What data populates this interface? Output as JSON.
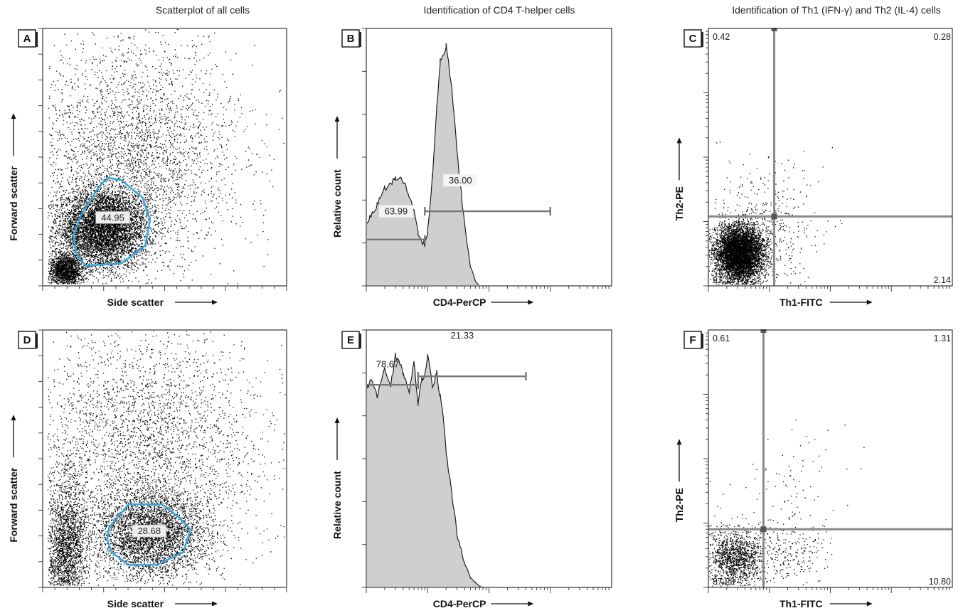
{
  "column_titles": [
    "Scatterplot of all cells",
    "Identification of CD4 T-helper cells",
    "Identification of Th1 (IFN-γ) and Th2 (IL-4) cells"
  ],
  "chart_data": [
    {
      "panel": "A",
      "type": "scatter",
      "title": "Scatterplot of all cells",
      "xlabel": "Side scatter",
      "ylabel": "Forward scatter",
      "xlim": [
        0,
        1023
      ],
      "ylim": [
        0,
        1023
      ],
      "ticks": "unlabeled",
      "gate": {
        "shape": "polygon",
        "color": "#3aa6d8",
        "label": "44.95",
        "polygon": [
          [
            160,
            280
          ],
          [
            230,
            385
          ],
          [
            270,
            430
          ],
          [
            330,
            420
          ],
          [
            420,
            350
          ],
          [
            450,
            260
          ],
          [
            430,
            160
          ],
          [
            330,
            90
          ],
          [
            180,
            80
          ],
          [
            140,
            130
          ],
          [
            130,
            200
          ]
        ]
      },
      "populations": [
        {
          "center": [
            250,
            230
          ],
          "spread": [
            95,
            80
          ],
          "weight": 0.55
        },
        {
          "center": [
            95,
            60
          ],
          "spread": [
            35,
            35
          ],
          "weight": 0.15
        },
        {
          "center": [
            380,
            520
          ],
          "spread": [
            220,
            230
          ],
          "weight": 0.3
        }
      ]
    },
    {
      "panel": "B",
      "type": "area",
      "title": "Identification of CD4 T-helper cells",
      "xlabel": "CD4-PerCP",
      "ylabel": "Relative count",
      "xscale": "log",
      "xlim": [
        1,
        10000
      ],
      "ylim": [
        0,
        1
      ],
      "x": [
        1,
        1.5,
        2,
        3,
        4,
        5,
        6,
        7,
        8,
        9,
        10,
        12,
        14,
        16,
        20,
        25,
        30,
        40,
        50,
        60,
        70,
        80,
        100,
        150,
        200,
        500,
        1000,
        10000
      ],
      "values": [
        0.25,
        0.33,
        0.4,
        0.44,
        0.43,
        0.37,
        0.3,
        0.22,
        0.18,
        0.17,
        0.22,
        0.45,
        0.72,
        0.92,
        0.98,
        0.8,
        0.55,
        0.25,
        0.08,
        0.02,
        0,
        0,
        0,
        0,
        0,
        0,
        0,
        0
      ],
      "gates": [
        {
          "label": "63.99",
          "range": [
            1,
            9
          ]
        },
        {
          "label": "36.00",
          "range": [
            9,
            1000
          ]
        }
      ]
    },
    {
      "panel": "C",
      "type": "scatter",
      "title": "Identification of Th1 (IFN-γ) and Th2 (IL-4) cells",
      "xlabel": "Th1-FITC",
      "ylabel": "Th2-PE",
      "xscale": "log",
      "yscale": "log",
      "xlim": [
        1,
        10000
      ],
      "ylim": [
        1,
        10000
      ],
      "quadrant": {
        "x": 12,
        "y": 12
      },
      "quadrant_values": {
        "upper_left": "0.42",
        "upper_right": "0.28",
        "lower_left": "97.16",
        "lower_right": "2.14"
      },
      "populations": [
        {
          "center": [
            3.2,
            3.2
          ],
          "spread": [
            0.2,
            0.22
          ],
          "weight": 0.93
        },
        {
          "center": [
            8,
            8
          ],
          "spread": [
            0.45,
            0.5
          ],
          "weight": 0.07
        }
      ]
    },
    {
      "panel": "D",
      "type": "scatter",
      "xlabel": "Side scatter",
      "ylabel": "Forward scatter",
      "xlim": [
        0,
        1023
      ],
      "ylim": [
        0,
        1023
      ],
      "ticks": "unlabeled",
      "gate": {
        "shape": "polygon",
        "color": "#3aa6d8",
        "label": "28.68",
        "polygon": [
          [
            280,
            240
          ],
          [
            360,
            330
          ],
          [
            500,
            330
          ],
          [
            570,
            280
          ],
          [
            620,
            230
          ],
          [
            590,
            140
          ],
          [
            480,
            90
          ],
          [
            360,
            90
          ],
          [
            290,
            140
          ],
          [
            270,
            190
          ]
        ]
      },
      "populations": [
        {
          "center": [
            450,
            210
          ],
          "spread": [
            120,
            90
          ],
          "weight": 0.4
        },
        {
          "center": [
            100,
            150
          ],
          "spread": [
            45,
            150
          ],
          "weight": 0.25
        },
        {
          "center": [
            420,
            560
          ],
          "spread": [
            260,
            240
          ],
          "weight": 0.35
        }
      ]
    },
    {
      "panel": "E",
      "type": "area",
      "xlabel": "CD4-PerCP",
      "ylabel": "Relative count",
      "xscale": "log",
      "xlim": [
        1,
        10000
      ],
      "ylim": [
        0,
        1
      ],
      "x": [
        1,
        1.2,
        1.5,
        2,
        2.5,
        3,
        4,
        5,
        6,
        7,
        8,
        9,
        10,
        12,
        14,
        16,
        18,
        20,
        25,
        30,
        40,
        50,
        60,
        70,
        80,
        100,
        1000,
        10000
      ],
      "values": [
        0.8,
        0.85,
        0.78,
        0.9,
        0.82,
        0.95,
        0.88,
        0.8,
        0.92,
        0.75,
        0.85,
        0.86,
        0.95,
        0.82,
        0.88,
        0.78,
        0.7,
        0.55,
        0.38,
        0.22,
        0.1,
        0.04,
        0.02,
        0.005,
        0,
        0,
        0,
        0
      ],
      "gates": [
        {
          "label": "78.67",
          "range": [
            1,
            7
          ]
        },
        {
          "label": "21.33",
          "range": [
            7,
            400
          ]
        }
      ]
    },
    {
      "panel": "F",
      "type": "scatter",
      "xlabel": "Th1-FITC",
      "ylabel": "Th2-PE",
      "xscale": "log",
      "yscale": "log",
      "xlim": [
        1,
        10000
      ],
      "ylim": [
        1,
        10000
      ],
      "quadrant": {
        "x": 8,
        "y": 8
      },
      "quadrant_values": {
        "upper_left": "0.61",
        "upper_right": "1.31",
        "lower_left": "87.29",
        "lower_right": "10.80"
      },
      "populations": [
        {
          "center": [
            2.8,
            3.0
          ],
          "spread": [
            0.24,
            0.22
          ],
          "weight": 0.8
        },
        {
          "center": [
            18,
            3.5
          ],
          "spread": [
            0.35,
            0.25
          ],
          "weight": 0.15
        },
        {
          "center": [
            20,
            30
          ],
          "spread": [
            0.5,
            0.45
          ],
          "weight": 0.05
        }
      ]
    }
  ]
}
